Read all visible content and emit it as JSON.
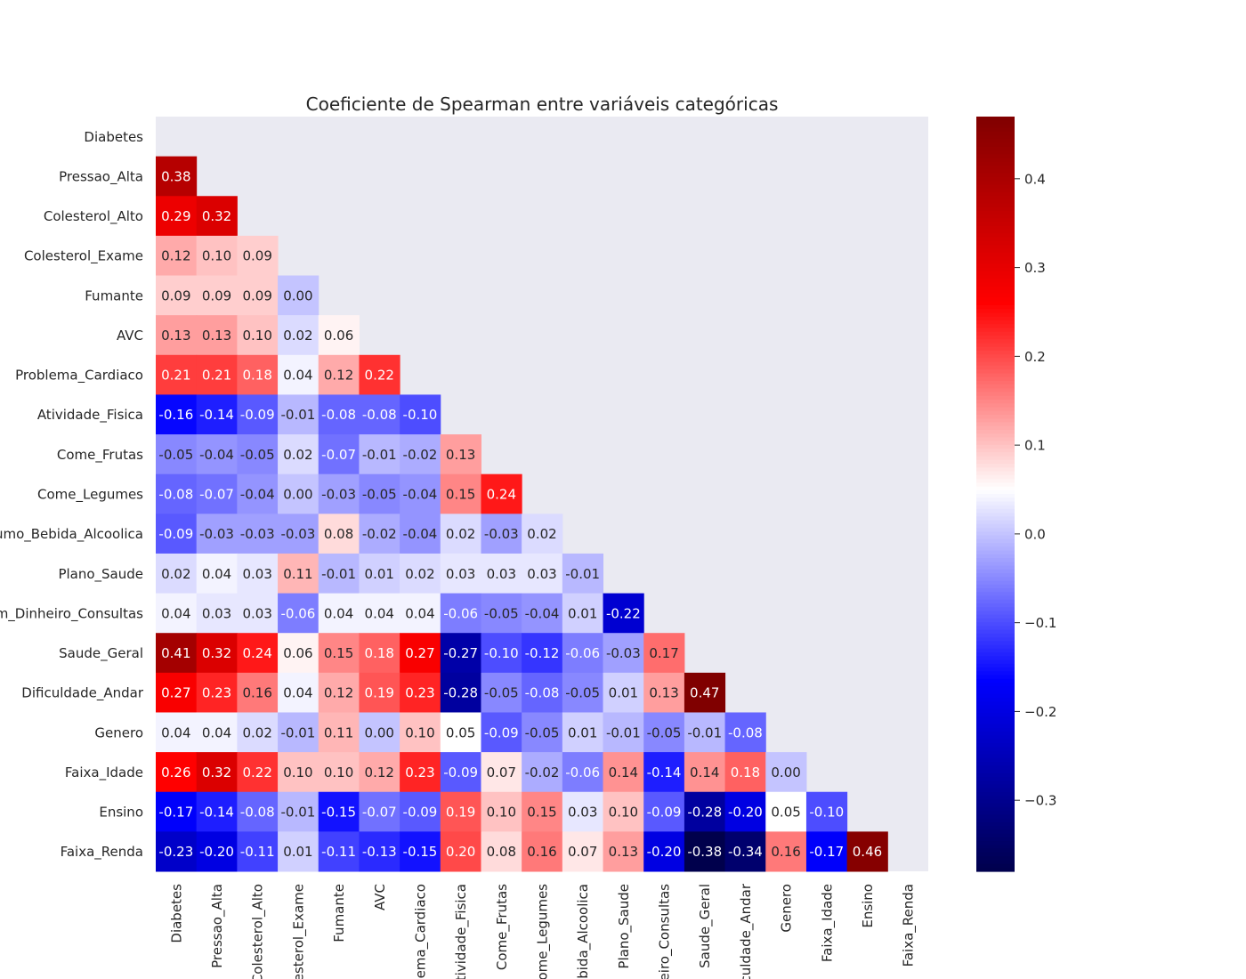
{
  "chart_data": {
    "type": "heatmap",
    "title": "Coeficiente de Spearman entre variáveis categóricas",
    "variables": [
      "Diabetes",
      "Pressao_Alta",
      "Colesterol_Alto",
      "Colesterol_Exame",
      "Fumante",
      "AVC",
      "Problema_Cardiaco",
      "Atividade_Fisica",
      "Come_Frutas",
      "Come_Legumes",
      "Consumo_Bebida_Alcoolica",
      "Plano_Saude",
      "Sem_Dinheiro_Consultas",
      "Saude_Geral",
      "Dificuldade_Andar",
      "Genero",
      "Faixa_Idade",
      "Ensino",
      "Faixa_Renda"
    ],
    "row_labels": [
      "Diabetes",
      "Pressao_Alta",
      "Colesterol_Alto",
      "Colesterol_Exame",
      "Fumante",
      "AVC",
      "Problema_Cardiaco",
      "Atividade_Fisica",
      "Come_Frutas",
      "Come_Legumes",
      "sumo_Bebida_Alcoolica",
      "Plano_Saude",
      "em_Dinheiro_Consultas",
      "Saude_Geral",
      "Dificuldade_Andar",
      "Genero",
      "Faixa_Idade",
      "Ensino",
      "Faixa_Renda"
    ],
    "col_labels": [
      "Diabetes",
      "Pressao_Alta",
      "Colesterol_Alto",
      "olesterol_Exame",
      "Fumante",
      "AVC",
      "blema_Cardiaco",
      "Atividade_Fisica",
      "Come_Frutas",
      "Come_Legumes",
      "ebida_Alcoolica",
      "Plano_Saude",
      "heiro_Consultas",
      "Saude_Geral",
      "iculdade_Andar",
      "Genero",
      "Faixa_Idade",
      "Ensino",
      "Faixa_Renda"
    ],
    "mask": "upper-triangle-including-diagonal",
    "values": [
      [],
      [
        0.38
      ],
      [
        0.29,
        0.32
      ],
      [
        0.12,
        0.1,
        0.09
      ],
      [
        0.09,
        0.09,
        0.09,
        -0.0
      ],
      [
        0.13,
        0.13,
        0.1,
        0.02,
        0.06
      ],
      [
        0.21,
        0.21,
        0.18,
        0.04,
        0.12,
        0.22
      ],
      [
        -0.16,
        -0.14,
        -0.09,
        -0.01,
        -0.08,
        -0.08,
        -0.1
      ],
      [
        -0.05,
        -0.04,
        -0.05,
        0.02,
        -0.07,
        -0.01,
        -0.02,
        0.13
      ],
      [
        -0.08,
        -0.07,
        -0.04,
        0.0,
        -0.03,
        -0.05,
        -0.04,
        0.15,
        0.24
      ],
      [
        -0.09,
        -0.03,
        -0.03,
        -0.03,
        0.08,
        -0.02,
        -0.04,
        0.02,
        -0.03,
        0.02
      ],
      [
        0.02,
        0.04,
        0.03,
        0.11,
        -0.01,
        0.01,
        0.02,
        0.03,
        0.03,
        0.03,
        -0.01
      ],
      [
        0.04,
        0.03,
        0.03,
        -0.06,
        0.04,
        0.04,
        0.04,
        -0.06,
        -0.05,
        -0.04,
        0.01,
        -0.22
      ],
      [
        0.41,
        0.32,
        0.24,
        0.06,
        0.15,
        0.18,
        0.27,
        -0.27,
        -0.1,
        -0.12,
        -0.06,
        -0.03,
        0.17
      ],
      [
        0.27,
        0.23,
        0.16,
        0.04,
        0.12,
        0.19,
        0.23,
        -0.28,
        -0.05,
        -0.08,
        -0.05,
        0.01,
        0.13,
        0.47
      ],
      [
        0.04,
        0.04,
        0.02,
        -0.01,
        0.11,
        0.0,
        0.1,
        0.05,
        -0.09,
        -0.05,
        0.01,
        -0.01,
        -0.05,
        -0.01,
        -0.08
      ],
      [
        0.26,
        0.32,
        0.22,
        0.1,
        0.1,
        0.12,
        0.23,
        -0.09,
        0.07,
        -0.02,
        -0.06,
        0.14,
        -0.14,
        0.14,
        0.18,
        0.0
      ],
      [
        -0.17,
        -0.14,
        -0.08,
        -0.01,
        -0.15,
        -0.07,
        -0.09,
        0.19,
        0.1,
        0.15,
        0.03,
        0.1,
        -0.09,
        -0.28,
        -0.2,
        0.05,
        -0.1
      ],
      [
        -0.23,
        -0.2,
        -0.11,
        0.01,
        -0.11,
        -0.13,
        -0.15,
        0.2,
        0.08,
        0.16,
        0.07,
        0.13,
        -0.2,
        -0.38,
        -0.34,
        0.16,
        -0.17,
        0.46
      ]
    ],
    "value_format": "2 decimals",
    "colormap": "seismic",
    "center": 0.05,
    "vmin": -0.38,
    "vmax": 0.47,
    "colorbar_ticks": [
      0.4,
      0.3,
      0.2,
      0.1,
      0.0,
      -0.1,
      -0.2,
      -0.3
    ],
    "colorbar_tick_labels": [
      "0.4",
      "0.3",
      "0.2",
      "0.1",
      "0.0",
      "−0.1",
      "−0.2",
      "−0.3"
    ],
    "masked_color": "#eaeaf2",
    "grid": false,
    "legend": "colorbar-right"
  }
}
